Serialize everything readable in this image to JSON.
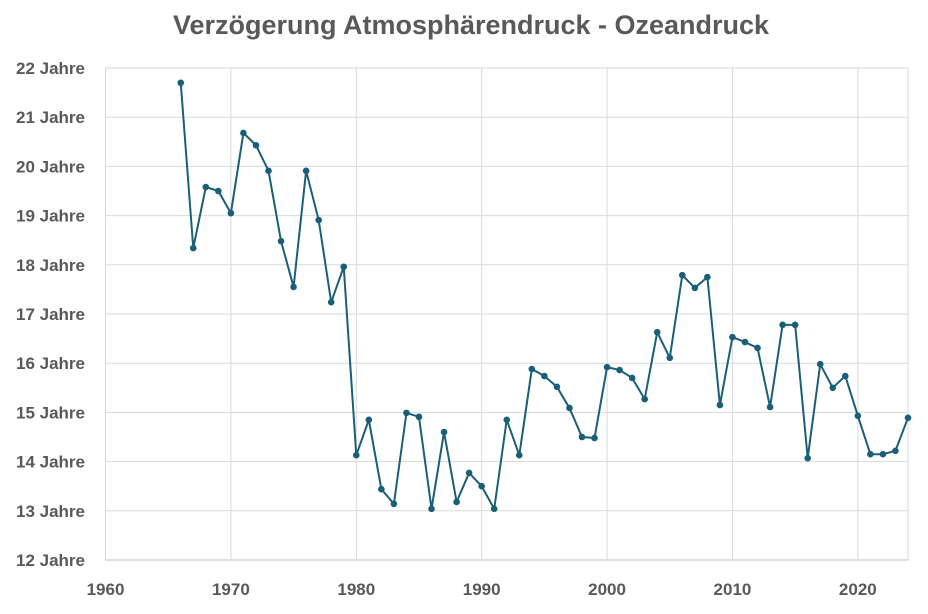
{
  "chart_data": {
    "type": "line",
    "title": "Verzögerung Atmosphärendruck - Ozeandruck",
    "xlabel": "",
    "ylabel": "",
    "xlim": [
      1960,
      2024
    ],
    "ylim": [
      12,
      22
    ],
    "grid": true,
    "x_ticks": [
      1960,
      1970,
      1980,
      1990,
      2000,
      2010,
      2020
    ],
    "y_ticks": [
      12,
      13,
      14,
      15,
      16,
      17,
      18,
      19,
      20,
      21,
      22
    ],
    "y_tick_suffix": " Jahre",
    "line_color": "#1b5e78",
    "series": [
      {
        "name": "Verzögerung",
        "x": [
          1966,
          1967,
          1968,
          1969,
          1970,
          1971,
          1972,
          1973,
          1974,
          1975,
          1976,
          1977,
          1978,
          1979,
          1980,
          1981,
          1982,
          1983,
          1984,
          1985,
          1986,
          1987,
          1988,
          1989,
          1990,
          1991,
          1992,
          1993,
          1994,
          1995,
          1996,
          1997,
          1998,
          1999,
          2000,
          2001,
          2002,
          2003,
          2004,
          2005,
          2006,
          2007,
          2008,
          2009,
          2010,
          2011,
          2012,
          2013,
          2014,
          2015,
          2016,
          2017,
          2018,
          2019,
          2020,
          2021,
          2022,
          2023,
          2024
        ],
        "values": [
          21.7,
          18.34,
          19.58,
          19.5,
          19.05,
          20.68,
          20.43,
          19.91,
          18.48,
          17.55,
          19.91,
          18.91,
          17.24,
          17.96,
          14.13,
          14.85,
          13.44,
          13.14,
          14.99,
          14.91,
          13.04,
          14.6,
          13.18,
          13.77,
          13.5,
          13.04,
          14.85,
          14.13,
          15.88,
          15.74,
          15.52,
          15.09,
          14.5,
          14.48,
          15.92,
          15.86,
          15.7,
          15.27,
          16.63,
          16.11,
          17.79,
          17.53,
          17.75,
          15.15,
          16.53,
          16.43,
          16.31,
          15.11,
          16.78,
          16.78,
          14.07,
          15.98,
          15.5,
          15.74,
          14.93,
          14.15,
          14.15,
          14.22,
          14.89
        ]
      }
    ]
  }
}
